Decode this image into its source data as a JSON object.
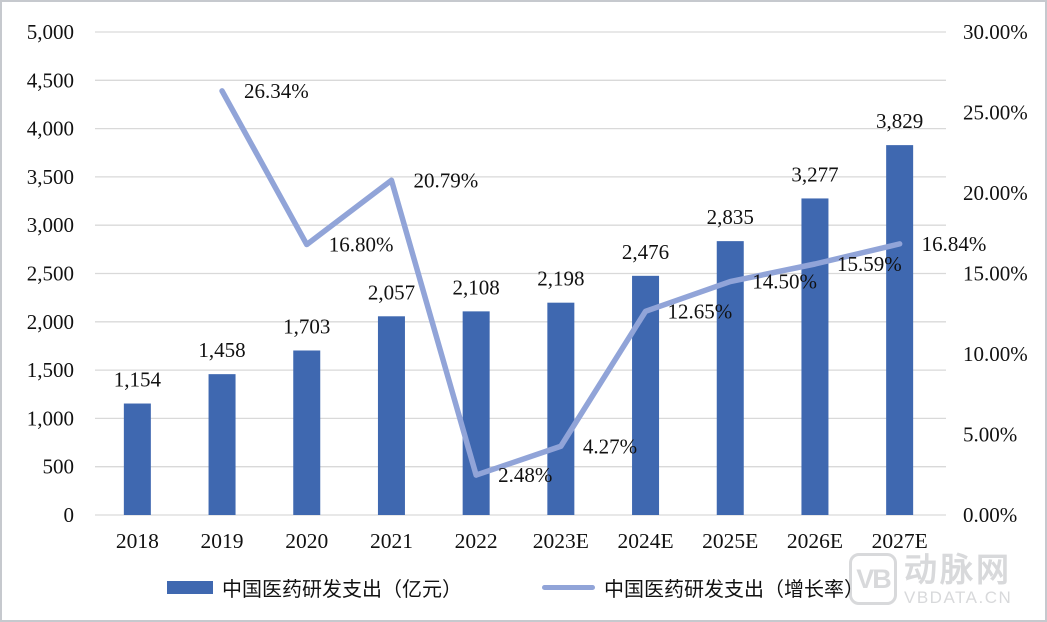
{
  "chart_data": {
    "type": "combo (bar + line)",
    "title": "",
    "categories": [
      "2018",
      "2019",
      "2020",
      "2021",
      "2022",
      "2023E",
      "2024E",
      "2025E",
      "2026E",
      "2027E"
    ],
    "series": [
      {
        "name": "中国医药研发支出（亿元）",
        "type": "bar",
        "axis": "left",
        "color": "#3F68B0",
        "values": [
          1154,
          1458,
          1703,
          2057,
          2108,
          2198,
          2476,
          2835,
          3277,
          3829
        ],
        "labels": [
          "1,154",
          "1,458",
          "1,703",
          "2,057",
          "2,108",
          "2,198",
          "2,476",
          "2,835",
          "3,277",
          "3,829"
        ]
      },
      {
        "name": "中国医药研发支出（增长率）",
        "type": "line",
        "axis": "right",
        "color": "#91A4D8",
        "values": [
          null,
          26.34,
          16.8,
          20.79,
          2.48,
          4.27,
          12.65,
          14.5,
          15.59,
          16.84
        ],
        "labels": [
          null,
          "26.34%",
          "16.80%",
          "20.79%",
          "2.48%",
          "4.27%",
          "12.65%",
          "14.50%",
          "15.59%",
          "16.84%"
        ]
      }
    ],
    "left_axis": {
      "min": 0,
      "max": 5000,
      "step": 500,
      "ticks": [
        "0",
        "500",
        "1,000",
        "1,500",
        "2,000",
        "2,500",
        "3,000",
        "3,500",
        "4,000",
        "4,500",
        "5,000"
      ]
    },
    "right_axis": {
      "min": 0,
      "max": 30,
      "step": 5,
      "ticks": [
        "0.00%",
        "5.00%",
        "10.00%",
        "15.00%",
        "20.00%",
        "25.00%",
        "30.00%"
      ]
    },
    "grid": true,
    "legend_position": "bottom"
  },
  "colors": {
    "background": "#FFFFFF",
    "grid": "#D9D9D9",
    "text": "#111111",
    "border": "#C6C9CE",
    "watermark": "#D8D9DB"
  },
  "watermark": {
    "logo_monogram": "VB",
    "brand": "动脉网",
    "site": "VBDATA.CN"
  }
}
